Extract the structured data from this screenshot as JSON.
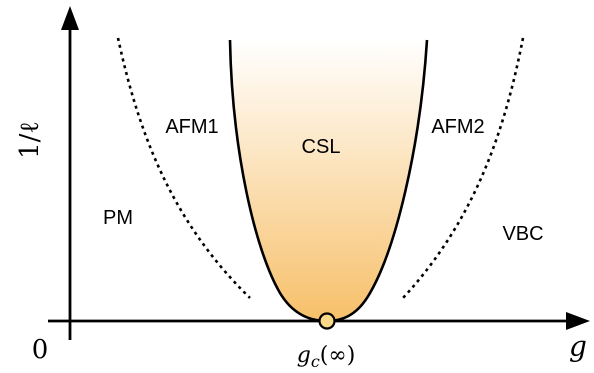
{
  "axes": {
    "y_label": "1/ℓ",
    "x_label": "g",
    "origin_label": "0",
    "critical_point": {
      "symbol": "g",
      "subscript": "c",
      "argument": "(∞)"
    }
  },
  "regions": {
    "pm": "PM",
    "afm1": "AFM1",
    "csl": "CSL",
    "afm2": "AFM2",
    "vbc": "VBC"
  },
  "colors": {
    "csl_fill_top": "#ffffff",
    "csl_fill_bottom": "#f7c06a",
    "critical_point_fill": "#f9d88a",
    "line": "#000000"
  }
}
